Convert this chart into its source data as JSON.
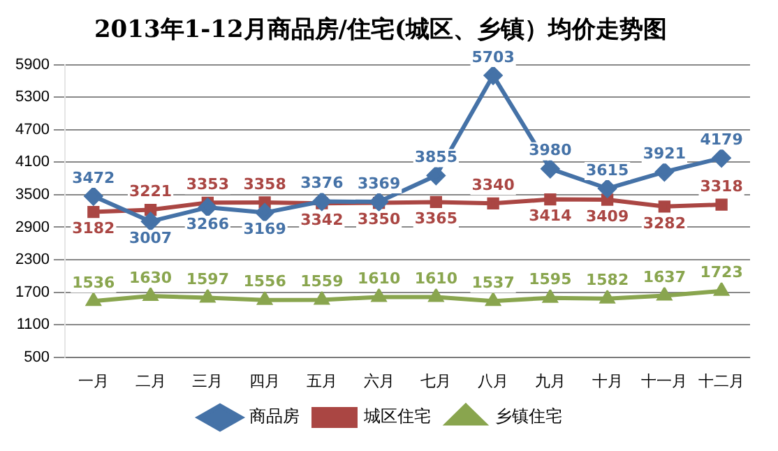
{
  "chart_data": {
    "type": "line",
    "title": "2013年1-12月商品房/住宅(城区、乡镇）均价走势图",
    "categories": [
      "一月",
      "二月",
      "三月",
      "四月",
      "五月",
      "六月",
      "七月",
      "八月",
      "九月",
      "十月",
      "十一月",
      "十二月"
    ],
    "series": [
      {
        "name": "商品房",
        "color": "#4572a7",
        "marker": "diamond",
        "values": [
          3472,
          3007,
          3266,
          3169,
          3376,
          3369,
          3855,
          5703,
          3980,
          3615,
          3921,
          4179
        ]
      },
      {
        "name": "城区住宅",
        "color": "#aa4643",
        "marker": "square",
        "values": [
          3182,
          3221,
          3353,
          3358,
          3342,
          3350,
          3365,
          3340,
          3414,
          3409,
          3282,
          3318
        ]
      },
      {
        "name": "乡镇住宅",
        "color": "#89a54e",
        "marker": "triangle",
        "values": [
          1536,
          1630,
          1597,
          1556,
          1559,
          1610,
          1610,
          1537,
          1595,
          1582,
          1637,
          1723
        ]
      }
    ],
    "ylim": [
      500,
      5900
    ],
    "yticks": [
      500,
      1100,
      1700,
      2300,
      2900,
      3500,
      4100,
      4700,
      5300,
      5900
    ],
    "grid": "y",
    "legend": "bottom",
    "data_labels": true
  }
}
